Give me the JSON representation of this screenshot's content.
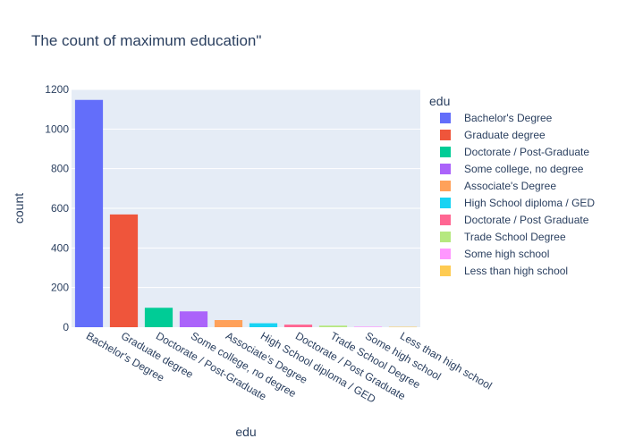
{
  "chart_data": {
    "type": "bar",
    "title": "The count of maximum education\"",
    "xlabel": "edu",
    "ylabel": "count",
    "ylim": [
      0,
      1200
    ],
    "yticks": [
      0,
      200,
      400,
      600,
      800,
      1000,
      1200
    ],
    "grid": true,
    "legend_title": "edu",
    "legend_placement": "right",
    "categories": [
      "Bachelor's Degree",
      "Graduate degree",
      "Doctorate / Post-Graduate",
      "Some college, no degree",
      "Associate's Degree",
      "High School diploma / GED",
      "Doctorate / Post Graduate",
      "Trade School Degree",
      "Some high school",
      "Less than high school"
    ],
    "values": [
      1147,
      569,
      98,
      80,
      36,
      20,
      13,
      8,
      3,
      2
    ],
    "colors": [
      "#636efa",
      "#ef553b",
      "#00cc96",
      "#ab63fa",
      "#ffa15a",
      "#19d3f3",
      "#ff6692",
      "#b6e880",
      "#ff97ff",
      "#fecb52"
    ],
    "plot_bg": "#e5ecf6",
    "grid_color": "#ffffff",
    "text_color": "#2a3f5f"
  }
}
